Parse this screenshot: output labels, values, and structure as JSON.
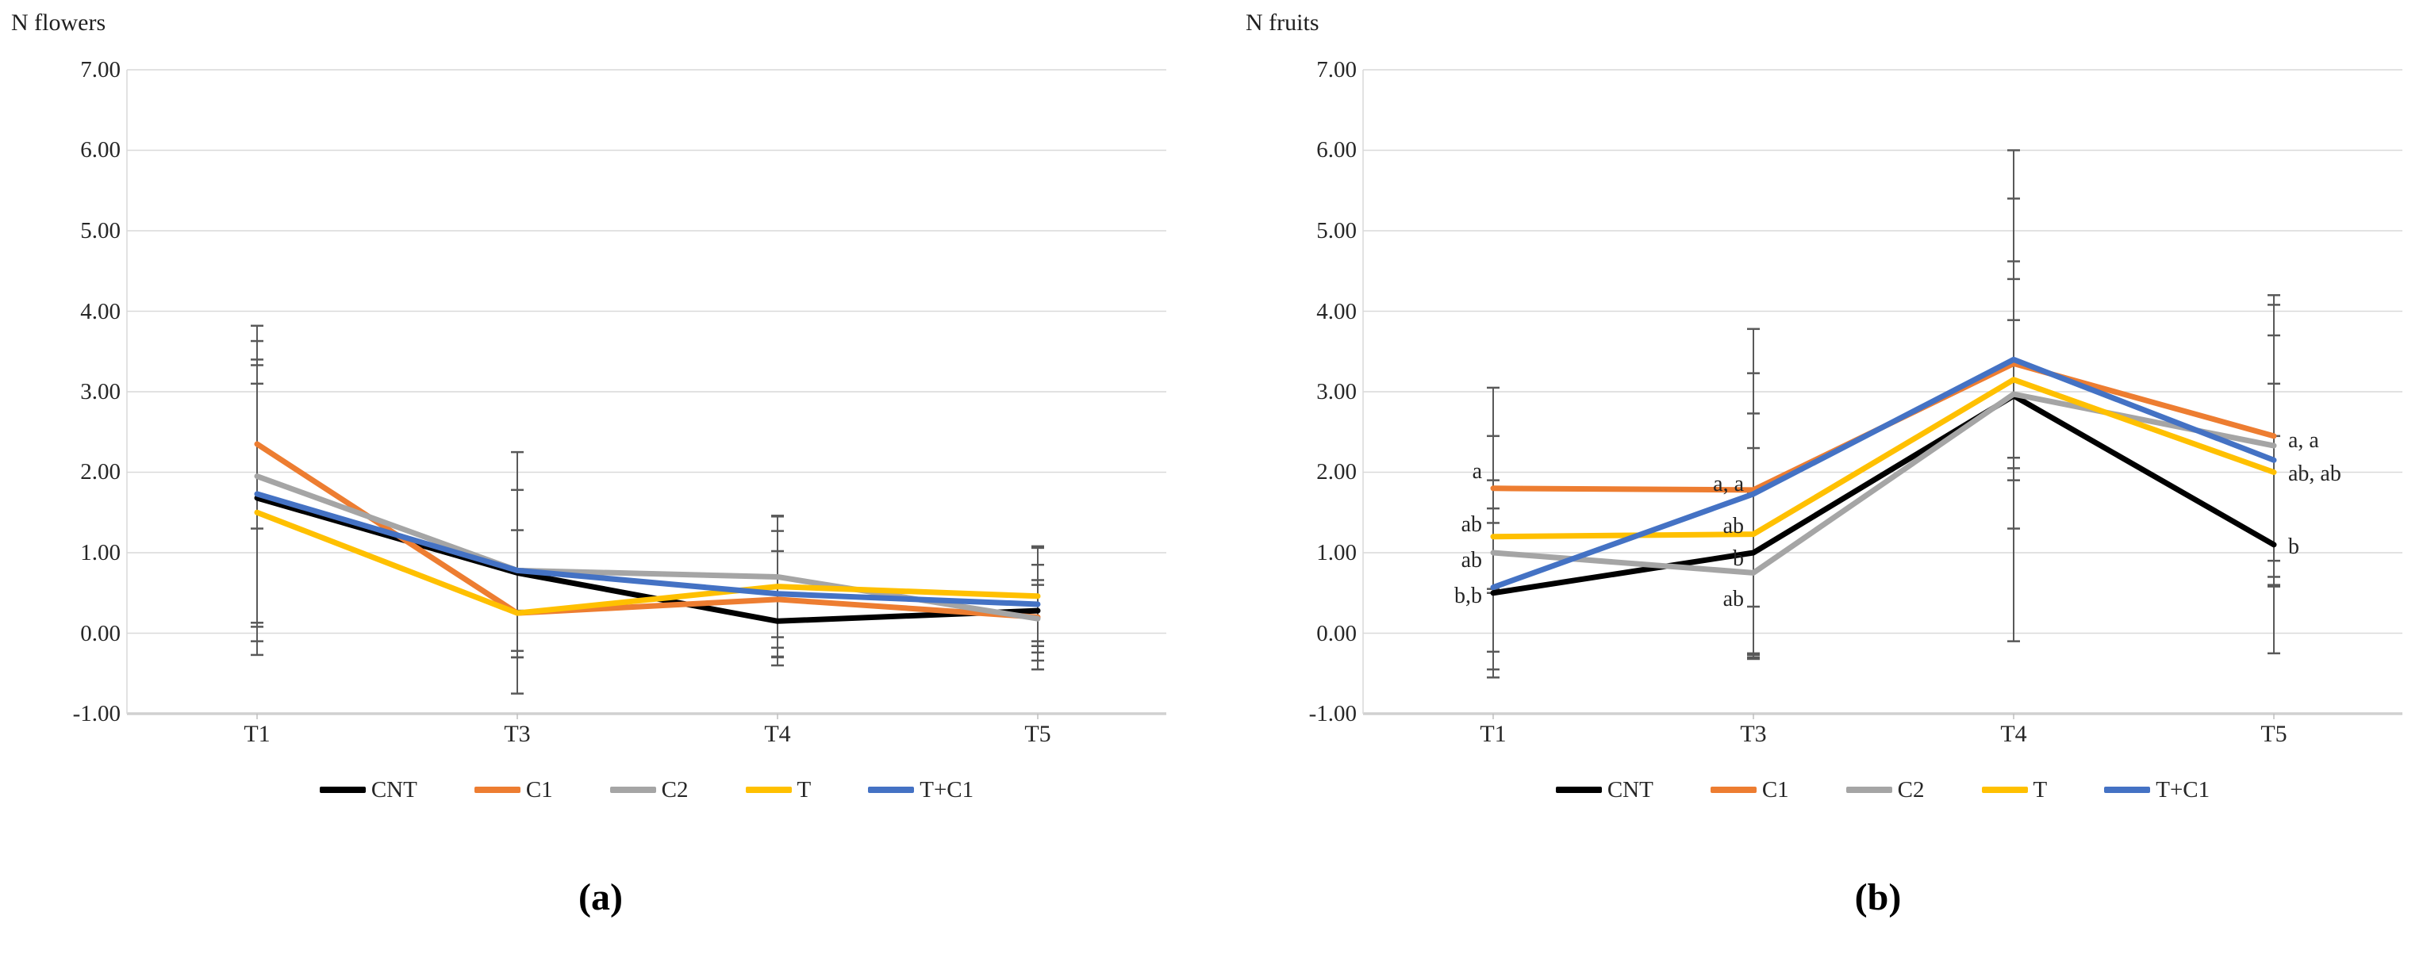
{
  "figure": {
    "captions": {
      "a": "(a)",
      "b": "(b)"
    }
  },
  "colors": {
    "gridline": "#d9d9d9",
    "axis": "#d0d0d0",
    "tick_stub": "#bfbfbf",
    "error_bar": "#595959"
  },
  "chart_data": [
    {
      "type": "line",
      "title": "N flowers",
      "caption": "(a)",
      "categories": [
        "T1",
        "T3",
        "T4",
        "T5"
      ],
      "x_tick_labels": [
        "T1",
        "T3",
        "T4",
        "T5"
      ],
      "y_tick_labels": [
        "7.00",
        "6.00",
        "5.00",
        "4.00",
        "3.00",
        "2.00",
        "1.00",
        "0.00",
        "-1.00"
      ],
      "ylim": [
        -1.0,
        7.0
      ],
      "y_step": 1.0,
      "grid": true,
      "legend_position": "bottom",
      "series": [
        {
          "name": "CNT",
          "color": "#000000",
          "values": [
            1.68,
            0.75,
            0.15,
            0.28
          ],
          "errors": [
            1.95,
            1.5,
            0.55,
            0.38
          ]
        },
        {
          "name": "C1",
          "color": "#ed7d31",
          "values": [
            2.35,
            0.25,
            0.42,
            0.2
          ],
          "errors": [
            1.05,
            0.55,
            0.6,
            0.65
          ]
        },
        {
          "name": "C2",
          "color": "#a5a5a5",
          "values": [
            1.95,
            0.78,
            0.7,
            0.18
          ],
          "errors": [
            1.87,
            0.5,
            0.75,
            0.42
          ]
        },
        {
          "name": "T",
          "color": "#ffc000",
          "values": [
            1.5,
            0.25,
            0.58,
            0.46
          ],
          "errors": [
            1.6,
            0.55,
            0.88,
            0.62
          ]
        },
        {
          "name": "T+C1",
          "color": "#4472c4",
          "values": [
            1.73,
            0.78,
            0.49,
            0.36
          ],
          "errors": [
            1.6,
            1.0,
            0.78,
            0.7
          ]
        }
      ],
      "annotations": []
    },
    {
      "type": "line",
      "title": "N fruits",
      "caption": "(b)",
      "categories": [
        "T1",
        "T3",
        "T4",
        "T5"
      ],
      "x_tick_labels": [
        "T1",
        "T3",
        "T4",
        "T5"
      ],
      "y_tick_labels": [
        "7.00",
        "6.00",
        "5.00",
        "4.00",
        "3.00",
        "2.00",
        "1.00",
        "0.00",
        "-1.00"
      ],
      "ylim": [
        -1.0,
        7.0
      ],
      "y_step": 1.0,
      "grid": true,
      "legend_position": "bottom",
      "series": [
        {
          "name": "CNT",
          "color": "#000000",
          "values": [
            0.5,
            1.0,
            2.95,
            1.1
          ],
          "errors": [
            1.05,
            1.3,
            3.05,
            1.35
          ]
        },
        {
          "name": "C1",
          "color": "#ed7d31",
          "values": [
            1.8,
            1.78,
            3.35,
            2.45
          ],
          "errors": [
            1.25,
            1.45,
            2.05,
            1.75
          ]
        },
        {
          "name": "C2",
          "color": "#a5a5a5",
          "values": [
            1.0,
            0.75,
            2.97,
            2.33
          ],
          "errors": [
            1.45,
            1.0,
            0.92,
            1.75
          ]
        },
        {
          "name": "T",
          "color": "#ffc000",
          "values": [
            1.2,
            1.23,
            3.15,
            2.0
          ],
          "errors": [
            0.7,
            1.5,
            1.25,
            1.1
          ]
        },
        {
          "name": "T+C1",
          "color": "#4472c4",
          "values": [
            0.57,
            1.73,
            3.4,
            2.15
          ],
          "errors": [
            0.8,
            2.05,
            1.22,
            1.55
          ]
        }
      ],
      "annotations": [
        {
          "text": "a",
          "category": "T1",
          "value": 2.0,
          "side": "left"
        },
        {
          "text": "ab",
          "category": "T1",
          "value": 1.34,
          "side": "left"
        },
        {
          "text": "ab",
          "category": "T1",
          "value": 0.9,
          "side": "left"
        },
        {
          "text": "b,b",
          "category": "T1",
          "value": 0.46,
          "side": "left"
        },
        {
          "text": "a, a",
          "category": "T3",
          "value": 1.85,
          "side": "left"
        },
        {
          "text": "ab",
          "category": "T3",
          "value": 1.32,
          "side": "left"
        },
        {
          "text": "b",
          "category": "T3",
          "value": 0.92,
          "side": "left"
        },
        {
          "text": "ab",
          "category": "T3",
          "value": 0.42,
          "side": "left"
        },
        {
          "text": "a, a",
          "category": "T5",
          "value": 2.39,
          "side": "right"
        },
        {
          "text": "ab, ab",
          "category": "T5",
          "value": 1.97,
          "side": "right"
        },
        {
          "text": "b",
          "category": "T5",
          "value": 1.07,
          "side": "right"
        }
      ]
    }
  ]
}
